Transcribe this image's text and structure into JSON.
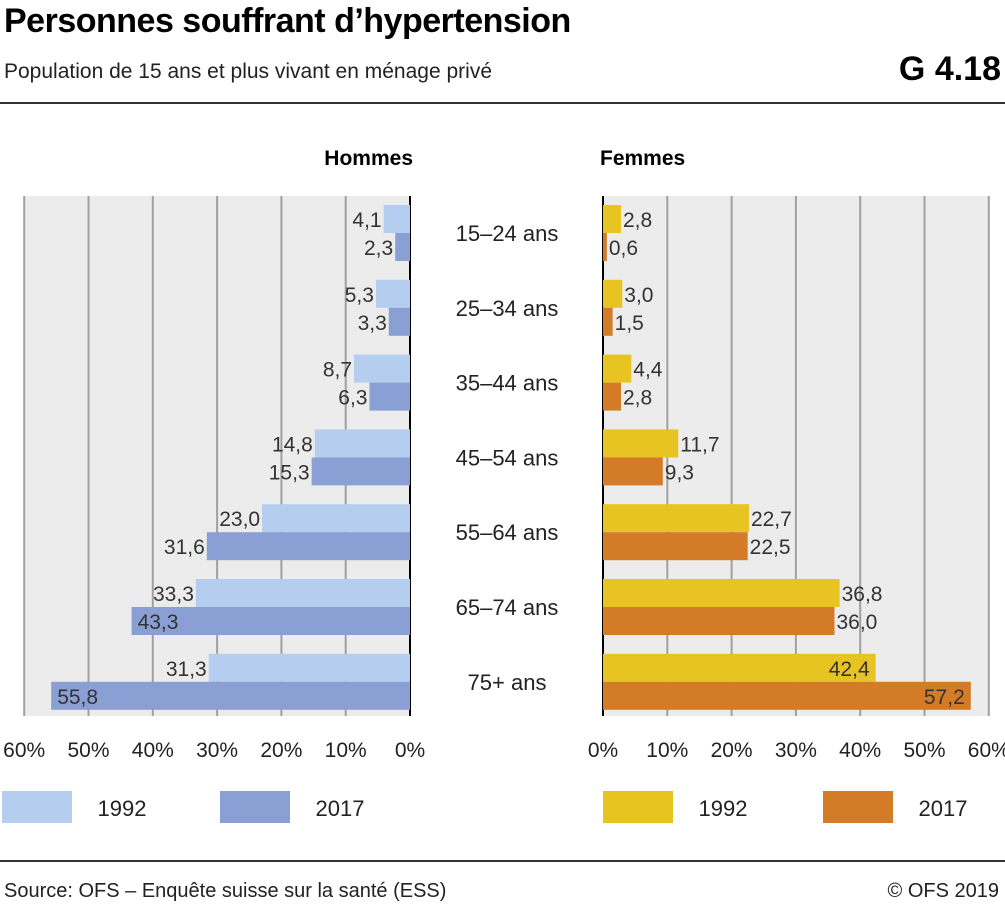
{
  "header": {
    "title": "Personnes souffrant d’hypertension",
    "subtitle": "Population de 15 ans et plus vivant en ménage privé",
    "figure_id": "G 4.18"
  },
  "footer": {
    "source": "Source: OFS – Enquête suisse sur la santé (ESS)",
    "copyright": "© OFS 2019"
  },
  "colors": {
    "men_1992": "#b5cdef",
    "men_2017": "#8a9fd3",
    "women_1992": "#e8c422",
    "women_2017": "#d37b27",
    "panel_bg": "#ececec",
    "gridline": "#a0a0a0"
  },
  "chart_data": [
    {
      "type": "bar",
      "orientation": "horizontal",
      "title": "Hommes",
      "categories": [
        "15–24 ans",
        "25–34 ans",
        "35–44 ans",
        "45–54 ans",
        "55–64 ans",
        "65–74 ans",
        "75+ ans"
      ],
      "series": [
        {
          "name": "1992",
          "values": [
            4.1,
            5.3,
            8.7,
            14.8,
            23.0,
            33.3,
            31.3
          ],
          "labels": [
            "4,1",
            "5,3",
            "8,7",
            "14,8",
            "23,0",
            "33,3",
            "31,3"
          ]
        },
        {
          "name": "2017",
          "values": [
            2.3,
            3.3,
            6.3,
            15.3,
            31.6,
            43.3,
            55.8
          ],
          "labels": [
            "2,3",
            "3,3",
            "6,3",
            "15,3",
            "31,6",
            "43,3",
            "55,8"
          ]
        }
      ],
      "xlim": [
        0,
        60
      ],
      "x_reversed": true,
      "xticks": [
        "60%",
        "50%",
        "40%",
        "30%",
        "20%",
        "10%",
        "0%"
      ],
      "grid": true,
      "legend_placement": "bottom"
    },
    {
      "type": "bar",
      "orientation": "horizontal",
      "title": "Femmes",
      "categories": [
        "15–24 ans",
        "25–34 ans",
        "35–44 ans",
        "45–54 ans",
        "55–64 ans",
        "65–74 ans",
        "75+ ans"
      ],
      "series": [
        {
          "name": "1992",
          "values": [
            2.8,
            3.0,
            4.4,
            11.7,
            22.7,
            36.8,
            42.4
          ],
          "labels": [
            "2,8",
            "3,0",
            "4,4",
            "11,7",
            "22,7",
            "36,8",
            "42,4"
          ]
        },
        {
          "name": "2017",
          "values": [
            0.6,
            1.5,
            2.8,
            9.3,
            22.5,
            36.0,
            57.2
          ],
          "labels": [
            "0,6",
            "1,5",
            "2,8",
            "9,3",
            "22,5",
            "36,0",
            "57,2"
          ]
        }
      ],
      "xlim": [
        0,
        60
      ],
      "x_reversed": false,
      "xticks": [
        "0%",
        "10%",
        "20%",
        "30%",
        "40%",
        "50%",
        "60%"
      ],
      "grid": true,
      "legend_placement": "bottom"
    }
  ]
}
